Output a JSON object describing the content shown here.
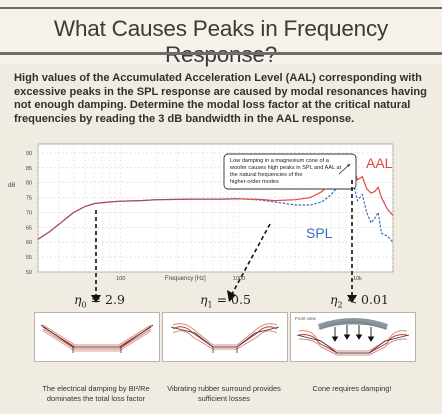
{
  "header": {
    "title": "What Causes Peaks in Frequency Response?"
  },
  "intro": {
    "text": "High values of the Accumulated Acceleration Level (AAL) corresponding with excessive peaks in the SPL response are caused by modal resonances having not enough damping. Determine the modal loss factor at the critical natural frequencies by reading the 3 dB bandwidth in the AAL response."
  },
  "colors": {
    "aal": "#e04545",
    "spl": "#3a6fc0",
    "accent": "#d9534f",
    "frame": "#8a8a8a"
  },
  "chart_data": {
    "type": "line",
    "xlabel": "Frequency [Hz]",
    "ylabel": "dB",
    "x_scale": "log",
    "xlim": [
      20,
      20000
    ],
    "ylim": [
      50,
      93
    ],
    "x_ticks": [
      "100",
      "1000",
      "10k"
    ],
    "y_ticks": [
      "90",
      "85",
      "80",
      "75",
      "70",
      "65",
      "60",
      "55",
      "50"
    ],
    "annotation": "Low damping in a magnesium cone of a woofer causes high peaks in SPL and AAL at the natural frequencies of the higher-order modes",
    "series": [
      {
        "name": "AAL",
        "color": "#e04545",
        "x": [
          20,
          25,
          30,
          40,
          50,
          60,
          80,
          100,
          150,
          200,
          300,
          400,
          500,
          700,
          1000,
          1500,
          2000,
          3000,
          4000,
          5000,
          6000,
          7000,
          7500,
          8000,
          8500,
          9000,
          10000,
          11000,
          12000,
          13000,
          14000,
          15000,
          16000,
          18000,
          20000
        ],
        "y": [
          61,
          63.5,
          66,
          70,
          72,
          73,
          73.5,
          73.8,
          74,
          74.3,
          74.4,
          74.5,
          74.5,
          74.5,
          74.6,
          74.4,
          74,
          74.3,
          75,
          77,
          80,
          83,
          86,
          89.5,
          84,
          86,
          81,
          82,
          78,
          76.5,
          77,
          78.5,
          75,
          71,
          69
        ]
      },
      {
        "name": "SPL",
        "color": "#3a6fc0",
        "x": [
          20,
          25,
          30,
          40,
          50,
          60,
          80,
          100,
          150,
          200,
          300,
          400,
          500,
          700,
          1000,
          1500,
          2000,
          3000,
          4000,
          5000,
          6000,
          7000,
          7500,
          8000,
          8500,
          9000,
          10000,
          11000,
          12000,
          13000,
          14000,
          15000,
          16000,
          18000,
          20000
        ],
        "y": [
          61,
          63.5,
          66,
          70,
          72,
          73,
          73.5,
          73.8,
          74,
          74.3,
          74.4,
          74.5,
          74.5,
          74.5,
          74.6,
          74.2,
          73.5,
          72.5,
          72.5,
          73.5,
          76,
          79,
          83,
          86.5,
          78,
          82,
          74,
          76,
          70,
          66.5,
          68,
          70,
          63,
          62,
          60
        ]
      }
    ],
    "labels": {
      "aal": "AAL",
      "spl": "SPL"
    }
  },
  "loss_factors": [
    {
      "symbol": "η",
      "sub": "0",
      "text": " = 2.9"
    },
    {
      "symbol": "η",
      "sub": "1",
      "text": " = 0.5"
    },
    {
      "symbol": "η",
      "sub": "2",
      "text": " < 0.01"
    }
  ],
  "cards": [
    {
      "caption": "The electrical damping by BI²/Re dominates the total loss factor"
    },
    {
      "caption": "Vibrating rubber surround provides sufficient losses"
    },
    {
      "caption": "Cone requires damping!",
      "inset_label": "Front view"
    }
  ]
}
